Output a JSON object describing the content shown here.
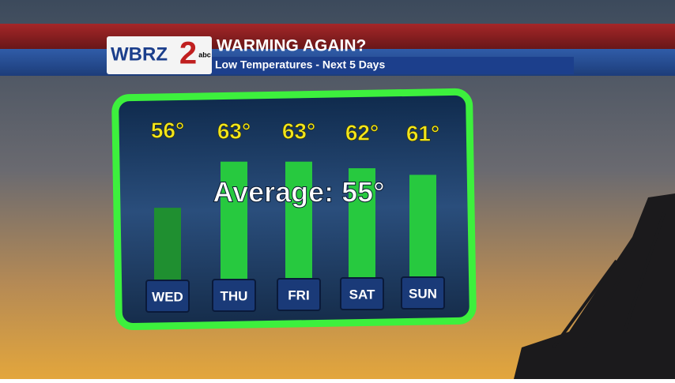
{
  "chart_data": {
    "type": "bar",
    "title": "WARMING AGAIN?",
    "subtitle": "Low Temperatures - Next 5 Days",
    "logo": {
      "station": "WBRZ",
      "channel": "2",
      "network": "abc"
    },
    "annotation": "Average: 55°",
    "categories": [
      "WED",
      "THU",
      "FRI",
      "SAT",
      "SUN"
    ],
    "values": [
      56,
      63,
      63,
      62,
      61
    ],
    "value_labels": [
      "56°",
      "63°",
      "63°",
      "62°",
      "61°"
    ],
    "colors": [
      "#1f8f30",
      "#27c93f",
      "#27c93f",
      "#27c93f",
      "#27c93f"
    ],
    "ylim": [
      45,
      65
    ]
  }
}
